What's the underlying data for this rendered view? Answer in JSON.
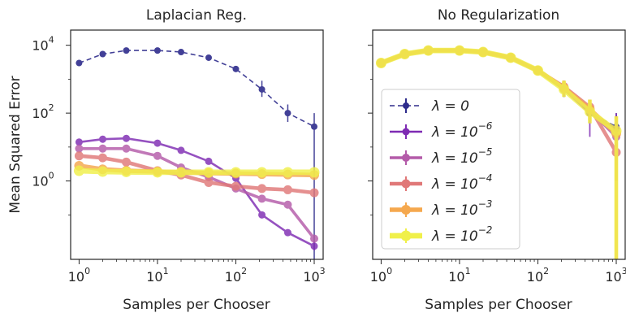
{
  "chart_data": [
    {
      "type": "line",
      "title": "Laplacian Reg.",
      "xlabel": "Samples per Chooser",
      "ylabel": "Mean Squared Error",
      "xscale": "log",
      "yscale": "log",
      "xlim": [
        0.78,
        1300
      ],
      "ylim": [
        0.0049,
        28000
      ],
      "xticks": [
        {
          "value": 1,
          "base": "10",
          "exp": "0"
        },
        {
          "value": 10,
          "base": "10",
          "exp": "1"
        },
        {
          "value": 100,
          "base": "10",
          "exp": "2"
        },
        {
          "value": 1000,
          "base": "10",
          "exp": "3"
        }
      ],
      "yticks": [
        {
          "value": 1,
          "base": "10",
          "exp": "0"
        },
        {
          "value": 100,
          "base": "10",
          "exp": "2"
        },
        {
          "value": 10000,
          "base": "10",
          "exp": "4"
        }
      ],
      "x": [
        1,
        2,
        4,
        10,
        20,
        45,
        100,
        215,
        460,
        1000
      ],
      "series": [
        {
          "name": "λ = 0",
          "color": "#2e2c8c",
          "linestyle": "dashed",
          "values": [
            3000,
            5500,
            7000,
            7000,
            6300,
            4300,
            2000,
            500,
            100,
            40
          ],
          "yerr_low": [
            2700,
            5000,
            6500,
            6500,
            5800,
            3900,
            1700,
            300,
            55,
            0.005
          ],
          "yerr_high": [
            3300,
            6000,
            7500,
            7500,
            6800,
            4700,
            2300,
            900,
            180,
            100
          ]
        },
        {
          "name": "λ = 10⁻⁶",
          "color": "#7e2bb3",
          "linestyle": "solid",
          "values": [
            14,
            17,
            18,
            13,
            8,
            3.8,
            1.2,
            0.1,
            0.03,
            0.012
          ],
          "yerr_low": [
            12,
            15,
            16,
            12,
            7,
            3.4,
            1.0,
            0.08,
            0.025,
            0.009
          ],
          "yerr_high": [
            16,
            19,
            20,
            14,
            9,
            4.2,
            1.4,
            0.12,
            0.035,
            0.016
          ]
        },
        {
          "name": "λ = 10⁻⁵",
          "color": "#b45ba9",
          "linestyle": "solid",
          "values": [
            9,
            9,
            9,
            5.5,
            2.5,
            1.3,
            0.6,
            0.3,
            0.2,
            0.02
          ],
          "yerr_low": [
            8,
            8,
            8,
            5,
            2.2,
            1.1,
            0.5,
            0.25,
            0.17,
            0.015
          ],
          "yerr_high": [
            10,
            10,
            10,
            6,
            2.8,
            1.5,
            0.7,
            0.35,
            0.23,
            0.025
          ]
        },
        {
          "name": "λ = 10⁻⁴",
          "color": "#e07878",
          "linestyle": "solid",
          "values": [
            5.5,
            4.8,
            3.6,
            2,
            1.5,
            0.9,
            0.7,
            0.6,
            0.55,
            0.45
          ],
          "yerr_low": [
            5,
            4.4,
            3.3,
            1.8,
            1.35,
            0.8,
            0.62,
            0.53,
            0.48,
            0.4
          ],
          "yerr_high": [
            6,
            5.2,
            3.9,
            2.2,
            1.65,
            1.0,
            0.78,
            0.67,
            0.62,
            0.5
          ]
        },
        {
          "name": "λ = 10⁻³",
          "color": "#f5a84e",
          "linestyle": "solid",
          "values": [
            2.8,
            2.2,
            2.0,
            1.9,
            1.8,
            1.7,
            1.65,
            1.6,
            1.55,
            1.5
          ],
          "yerr_low": [
            2.6,
            2.0,
            1.85,
            1.75,
            1.65,
            1.55,
            1.5,
            1.45,
            1.4,
            1.35
          ],
          "yerr_high": [
            3.0,
            2.4,
            2.15,
            2.05,
            1.95,
            1.85,
            1.8,
            1.75,
            1.7,
            1.65
          ]
        },
        {
          "name": "λ = 10⁻²",
          "color": "#f0f04a",
          "linestyle": "solid",
          "values": [
            2.0,
            1.9,
            1.85,
            1.8,
            1.8,
            1.8,
            1.8,
            1.8,
            1.8,
            1.8
          ],
          "yerr_low": [
            1.85,
            1.75,
            1.7,
            1.65,
            1.65,
            1.65,
            1.65,
            1.65,
            1.65,
            1.65
          ],
          "yerr_high": [
            2.15,
            2.05,
            2.0,
            1.95,
            1.95,
            1.95,
            1.95,
            1.95,
            1.95,
            1.95
          ]
        }
      ]
    },
    {
      "type": "line",
      "title": "No Regularization",
      "xlabel": "Samples per Chooser",
      "ylabel": "",
      "xscale": "log",
      "yscale": "log",
      "xlim": [
        0.78,
        1300
      ],
      "ylim": [
        0.0049,
        28000
      ],
      "sharey": true,
      "xticks": [
        {
          "value": 1,
          "base": "10",
          "exp": "0"
        },
        {
          "value": 10,
          "base": "10",
          "exp": "1"
        },
        {
          "value": 100,
          "base": "10",
          "exp": "2"
        },
        {
          "value": 1000,
          "base": "10",
          "exp": "3"
        }
      ],
      "legend": {
        "placement": "center-left",
        "entries": [
          {
            "base": "λ = 0",
            "exp": ""
          },
          {
            "base": "λ = 10",
            "exp": "−6"
          },
          {
            "base": "λ = 10",
            "exp": "−5"
          },
          {
            "base": "λ = 10",
            "exp": "−4"
          },
          {
            "base": "λ = 10",
            "exp": "−3"
          },
          {
            "base": "λ = 10",
            "exp": "−2"
          }
        ]
      },
      "x": [
        1,
        2,
        4,
        10,
        20,
        45,
        100,
        215,
        460,
        1000
      ],
      "series": [
        {
          "name": "λ = 0",
          "color": "#2e2c8c",
          "linestyle": "dashed",
          "values": [
            3000,
            5500,
            7000,
            7000,
            6300,
            4300,
            1800,
            500,
            100,
            40
          ],
          "yerr_low": [
            2700,
            5000,
            6500,
            6500,
            5800,
            3900,
            1500,
            300,
            55,
            5
          ],
          "yerr_high": [
            3300,
            6000,
            7500,
            7500,
            6800,
            4700,
            2100,
            900,
            180,
            100
          ]
        },
        {
          "name": "λ = 10⁻⁶",
          "color": "#7e2bb3",
          "linestyle": "solid",
          "values": [
            3000,
            5500,
            7000,
            7000,
            6300,
            4300,
            1800,
            500,
            100,
            35
          ],
          "yerr_low": [
            2700,
            5000,
            6500,
            6500,
            5800,
            3900,
            1500,
            300,
            20,
            5
          ],
          "yerr_high": [
            3300,
            6000,
            7500,
            7500,
            6800,
            4700,
            2100,
            900,
            250,
            100
          ]
        },
        {
          "name": "λ = 10⁻⁵",
          "color": "#b45ba9",
          "linestyle": "solid",
          "values": [
            3000,
            5500,
            7000,
            7000,
            6300,
            4300,
            1800,
            500,
            120,
            20
          ],
          "yerr_low": [
            2700,
            5000,
            6500,
            6500,
            5800,
            3900,
            1500,
            300,
            50,
            3
          ],
          "yerr_high": [
            3300,
            6000,
            7500,
            7500,
            6800,
            4700,
            2100,
            900,
            250,
            80
          ]
        },
        {
          "name": "λ = 10⁻⁴",
          "color": "#e07878",
          "linestyle": "solid",
          "values": [
            3000,
            5500,
            7000,
            7000,
            6300,
            4300,
            1800,
            600,
            150,
            7
          ],
          "yerr_low": [
            2700,
            5000,
            6500,
            6500,
            5800,
            3900,
            1500,
            400,
            70,
            1
          ],
          "yerr_high": [
            3300,
            6000,
            7500,
            7500,
            6800,
            4700,
            2100,
            900,
            250,
            30
          ]
        },
        {
          "name": "λ = 10⁻³",
          "color": "#f5a84e",
          "linestyle": "solid",
          "values": [
            3000,
            5500,
            7000,
            7000,
            6300,
            4300,
            1800,
            550,
            130,
            25
          ],
          "yerr_low": [
            2700,
            5000,
            6500,
            6500,
            5800,
            3900,
            1500,
            350,
            60,
            0.005
          ],
          "yerr_high": [
            3300,
            6000,
            7500,
            7500,
            6800,
            4700,
            2100,
            900,
            250,
            80
          ]
        },
        {
          "name": "λ = 10⁻²",
          "color": "#f0f04a",
          "linestyle": "solid",
          "values": [
            3000,
            5500,
            7000,
            7000,
            6300,
            4300,
            1800,
            500,
            110,
            30
          ],
          "yerr_low": [
            2700,
            5000,
            6500,
            6500,
            5800,
            3900,
            1500,
            300,
            50,
            0.005
          ],
          "yerr_high": [
            3300,
            6000,
            7500,
            7500,
            6800,
            4700,
            2100,
            900,
            250,
            80
          ]
        }
      ]
    }
  ]
}
